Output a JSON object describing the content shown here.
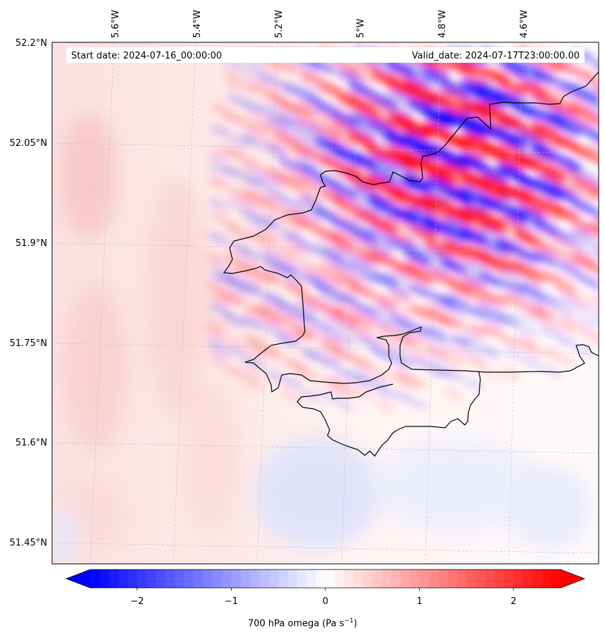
{
  "header": {
    "start_date": "Start date: 2024-07-16_00:00:00",
    "valid_date": "Valid_date: 2024-07-17T23:00:00.00"
  },
  "map": {
    "lon_ticks": [
      "5.6°W",
      "5.4°W",
      "5.2°W",
      "5°W",
      "4.8°W",
      "4.6°W"
    ],
    "lat_ticks": [
      "52.2°N",
      "52.05°N",
      "51.9°N",
      "51.75°N",
      "51.6°N",
      "51.45°N"
    ],
    "colors": {
      "negative": "#0000ff",
      "neutral": "#ffffff",
      "positive": "#ff0000",
      "coastline": "#000000"
    }
  },
  "colorbar": {
    "ticks": [
      "−2",
      "−1",
      "0",
      "1",
      "2"
    ],
    "tick_values": [
      -2,
      -1,
      0,
      1,
      2
    ],
    "range": [
      -2.5,
      2.5
    ],
    "label_main": "700 hPa omega (Pa s",
    "label_exp": "−1",
    "label_close": ")"
  }
}
